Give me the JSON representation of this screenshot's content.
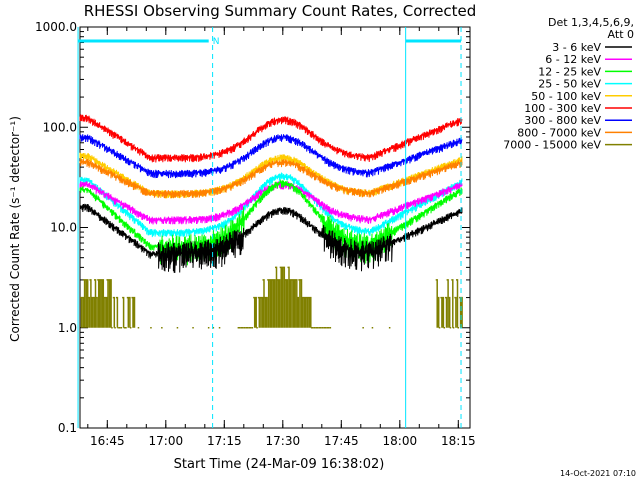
{
  "chart_data": {
    "type": "line",
    "title": "RHESSI Observing Summary Count Rates, Corrected",
    "xlabel": "Start Time (24-Mar-09 16:38:02)",
    "ylabel": "Corrected Count Rate (s⁻¹ detector⁻¹)",
    "yscale": "log",
    "ylim": [
      0.1,
      1000
    ],
    "xlim_min": [
      0,
      100
    ],
    "ytick_labels": [
      "0.1",
      "1.0",
      "10.0",
      "100.0",
      "1000.0"
    ],
    "ytick_values": [
      0.1,
      1,
      10,
      100,
      1000
    ],
    "xtick_labels": [
      "16:45",
      "17:00",
      "17:15",
      "17:30",
      "17:45",
      "18:00",
      "18:15"
    ],
    "xtick_values": [
      7,
      22,
      37,
      52,
      67,
      82,
      97
    ],
    "legend": {
      "header": [
        "Det 1,3,4,5,6,9,",
        "Att 0"
      ],
      "placement": "outside-right"
    },
    "series": [
      {
        "name": "3 - 6 keV",
        "color": "#000000",
        "base": 5.5,
        "peak": 15,
        "edge_start": 16,
        "edge_end": 15
      },
      {
        "name": "6 - 12 keV",
        "color": "#ff00ff",
        "base": 12,
        "peak": 27,
        "edge_start": 27,
        "edge_end": 27
      },
      {
        "name": "12 - 25 keV",
        "color": "#00ff00",
        "base": 6.5,
        "peak": 28,
        "edge_start": 24,
        "edge_end": 24
      },
      {
        "name": "25 - 50 keV",
        "color": "#00ffff",
        "base": 9,
        "peak": 33,
        "edge_start": 30,
        "edge_end": 29
      },
      {
        "name": "50 - 100 keV",
        "color": "#ffcc00",
        "base": 22,
        "peak": 50,
        "edge_start": 52,
        "edge_end": 48
      },
      {
        "name": "100 - 300 keV",
        "color": "#ff0000",
        "base": 50,
        "peak": 120,
        "edge_start": 125,
        "edge_end": 120
      },
      {
        "name": "300 - 800 keV",
        "color": "#0000ff",
        "base": 35,
        "peak": 80,
        "edge_start": 80,
        "edge_end": 75
      },
      {
        "name": "800 - 7000 keV",
        "color": "#ff8000",
        "base": 22,
        "peak": 45,
        "edge_start": 45,
        "edge_end": 45
      },
      {
        "name": "7000 - 15000 keV",
        "color": "#808000"
      }
    ],
    "markers": {
      "night_lines": [
        -0.5,
        34,
        83.5,
        97.7
      ],
      "saa_label": "N",
      "saa_segments": [
        [
          -0.5,
          33
        ],
        [
          83.5,
          97.7
        ]
      ]
    }
  },
  "footer": {
    "timestamp": "14-Oct-2021 07:10"
  }
}
